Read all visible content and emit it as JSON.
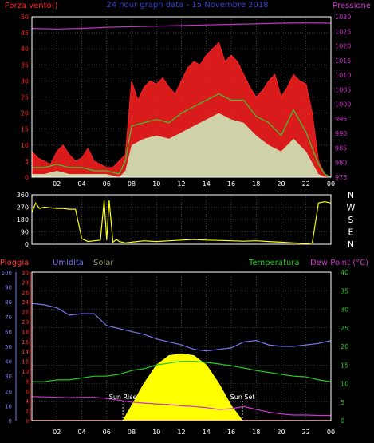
{
  "colors": {
    "wind": "#ff2020",
    "wind_avg": "#33cc33",
    "wind_min": "#ccffcc",
    "pressure": "#cc33cc",
    "wind_dir": "#ffff00",
    "rain": "#ff3333",
    "humidity": "#7777ee",
    "solar": "#ffff00",
    "temperature": "#22cc22",
    "dew_point": "#cc33cc",
    "grid": "#666666",
    "frame": "#ffffff"
  },
  "chart_data": [
    {
      "type": "area",
      "title": "24 hour graph data - 15 Novembre 2018",
      "left_label": "Forza vento()",
      "right_label": "Pressione",
      "x_ticks": [
        "02",
        "04",
        "06",
        "08",
        "10",
        "12",
        "14",
        "16",
        "18",
        "20",
        "22",
        "00"
      ],
      "x_range": [
        0,
        24
      ],
      "ylim_left": [
        0,
        50
      ],
      "ylim_right": [
        975,
        1030
      ],
      "y_ticks_left": [
        "0",
        "5",
        "10",
        "15",
        "20",
        "25",
        "30",
        "35",
        "40",
        "45",
        "50"
      ],
      "y_ticks_right": [
        "975",
        "980",
        "985",
        "990",
        "995",
        "1000",
        "1005",
        "1010",
        "1015",
        "1020",
        "1025",
        "1030"
      ],
      "series": [
        {
          "key": "gust",
          "x": [
            0,
            0.5,
            1,
            1.5,
            2,
            2.5,
            3,
            3.5,
            4,
            4.5,
            5,
            5.5,
            6,
            6.5,
            7,
            7.5,
            8,
            8.5,
            9,
            9.5,
            10,
            10.5,
            11,
            11.5,
            12,
            12.5,
            13,
            13.5,
            14,
            14.5,
            15,
            15.5,
            16,
            16.5,
            17,
            17.5,
            18,
            18.5,
            19,
            19.5,
            20,
            20.5,
            21,
            21.5,
            22,
            22.5,
            23,
            23.5,
            24
          ],
          "values": [
            8,
            6,
            5,
            4,
            8,
            10,
            7,
            5,
            6,
            9,
            5,
            4,
            3,
            3,
            5,
            7,
            30,
            24,
            28,
            30,
            29,
            31,
            28,
            26,
            30,
            34,
            36,
            35,
            38,
            40,
            42,
            36,
            38,
            36,
            32,
            28,
            25,
            27,
            30,
            32,
            25,
            28,
            32,
            30,
            29,
            20,
            5,
            1,
            0
          ]
        },
        {
          "key": "avg",
          "x": [
            0,
            1,
            2,
            3,
            4,
            5,
            6,
            7,
            7.5,
            8,
            9,
            10,
            11,
            12,
            13,
            14,
            15,
            16,
            17,
            18,
            19,
            20,
            21,
            22,
            23,
            23.5,
            24
          ],
          "values": [
            3,
            3,
            4,
            3,
            3,
            2,
            2,
            1,
            5,
            16,
            17,
            18,
            17,
            20,
            22,
            24,
            26,
            24,
            24,
            19,
            17,
            13,
            21,
            14,
            4,
            1,
            0
          ]
        },
        {
          "key": "min",
          "x": [
            0,
            1,
            2,
            3,
            4,
            5,
            6,
            7,
            7.5,
            8,
            9,
            10,
            11,
            12,
            13,
            14,
            15,
            16,
            17,
            18,
            19,
            20,
            21,
            22,
            23,
            23.5,
            24
          ],
          "values": [
            1,
            1,
            2,
            1,
            1,
            1,
            1,
            0,
            2,
            10,
            12,
            13,
            12,
            14,
            16,
            18,
            20,
            18,
            17,
            13,
            10,
            8,
            12,
            8,
            1,
            0,
            0
          ]
        },
        {
          "key": "pressure",
          "x": [
            0,
            2,
            4,
            6,
            8,
            10,
            12,
            14,
            16,
            18,
            20,
            22,
            24
          ],
          "values": [
            1026,
            1025.8,
            1026,
            1026.4,
            1026.6,
            1026.8,
            1027,
            1027.2,
            1027.4,
            1027.6,
            1027.8,
            1027.9,
            1027.8
          ]
        }
      ]
    },
    {
      "type": "line",
      "right_labels": [
        "N",
        "W",
        "S",
        "E",
        "N"
      ],
      "y_ticks": [
        "0",
        "90",
        "180",
        "270",
        "360"
      ],
      "ylim": [
        0,
        360
      ],
      "x_range": [
        0,
        24
      ],
      "series": [
        {
          "key": "direction",
          "x": [
            0,
            0.3,
            0.6,
            1,
            2,
            2.5,
            3,
            3.5,
            4,
            4.5,
            5,
            5.5,
            5.8,
            6,
            6.2,
            6.5,
            6.8,
            7,
            7.5,
            8,
            9,
            10,
            11,
            12,
            13,
            14,
            15,
            16,
            17,
            18,
            19,
            20,
            21,
            22,
            22.5,
            23,
            23.5,
            24
          ],
          "values": [
            230,
            300,
            260,
            270,
            260,
            260,
            255,
            255,
            40,
            20,
            25,
            30,
            320,
            30,
            320,
            15,
            35,
            20,
            10,
            15,
            25,
            20,
            25,
            30,
            35,
            30,
            28,
            25,
            22,
            25,
            20,
            15,
            10,
            5,
            10,
            300,
            310,
            300
          ]
        }
      ]
    },
    {
      "type": "line",
      "labels": {
        "rain": "Pioggia",
        "humidity": "Umidita",
        "solar": "Solar",
        "temperature": "Temperatura",
        "dew_point": "Dew Point (°C)"
      },
      "x_ticks": [
        "02",
        "04",
        "06",
        "08",
        "10",
        "12",
        "14",
        "16",
        "18",
        "20",
        "22",
        "00"
      ],
      "x_range": [
        0,
        24
      ],
      "y_ticks_humidity": [
        "0",
        "10",
        "20",
        "30",
        "40",
        "50",
        "60",
        "70",
        "80",
        "90",
        "100"
      ],
      "y_ticks_rain": [
        "0",
        "2",
        "4",
        "6",
        "8",
        "10",
        "12",
        "14",
        "16",
        "18",
        "20",
        "22",
        "24",
        "26",
        "28",
        "30"
      ],
      "y_ticks_temp": [
        "0",
        "5",
        "10",
        "15",
        "20",
        "25",
        "30",
        "35",
        "40"
      ],
      "ylim_humidity": [
        0,
        100
      ],
      "ylim_rain": [
        0,
        30
      ],
      "ylim_temp": [
        0,
        40
      ],
      "annotations": [
        "Sun Rise",
        "Sun Set"
      ],
      "sunrise_x": 7.3,
      "sunset_x": 16.9,
      "series": [
        {
          "key": "humidity",
          "x": [
            0,
            1,
            2,
            3,
            4,
            5,
            6,
            7,
            8,
            9,
            10,
            11,
            12,
            13,
            14,
            15,
            16,
            17,
            18,
            19,
            20,
            21,
            22,
            23,
            24
          ],
          "values": [
            79,
            78,
            76,
            71,
            72,
            72,
            64,
            62,
            60,
            58,
            55,
            53,
            51,
            48,
            47,
            48,
            49,
            53,
            54,
            51,
            50,
            50,
            51,
            52,
            54
          ]
        },
        {
          "key": "temperature",
          "x": [
            0,
            1,
            2,
            3,
            4,
            5,
            6,
            7,
            8,
            9,
            10,
            11,
            12,
            13,
            14,
            15,
            16,
            17,
            18,
            19,
            20,
            21,
            22,
            23,
            24
          ],
          "values": [
            10.5,
            10.5,
            11,
            11,
            11.5,
            12,
            12,
            12.5,
            13.5,
            14,
            15,
            15.5,
            16,
            16,
            15.7,
            15.3,
            14.8,
            14.2,
            13.5,
            13,
            12.5,
            12,
            11.8,
            11,
            10.5
          ]
        },
        {
          "key": "dew_point",
          "x": [
            0,
            1,
            2,
            3,
            4,
            5,
            6,
            7,
            8,
            9,
            10,
            11,
            12,
            13,
            14,
            15,
            16,
            17,
            18,
            19,
            20,
            21,
            22,
            23,
            24
          ],
          "values": [
            6.5,
            6.4,
            6.3,
            6.2,
            6.3,
            6.3,
            6,
            5.5,
            5,
            4.7,
            4.5,
            4.3,
            4,
            3.8,
            3.5,
            3,
            3.2,
            3.8,
            3,
            2.3,
            1.8,
            1.5,
            1.5,
            1.4,
            1.4
          ]
        },
        {
          "key": "solar_max",
          "x": [
            7.3,
            8,
            9,
            10,
            11,
            12,
            13,
            14,
            15,
            16,
            16.9
          ],
          "values": [
            0,
            4,
            10,
            15,
            17.5,
            18,
            17.5,
            15,
            10,
            4,
            0
          ]
        },
        {
          "key": "rain",
          "x": [
            0,
            24
          ],
          "values": [
            0,
            0
          ]
        }
      ]
    }
  ]
}
